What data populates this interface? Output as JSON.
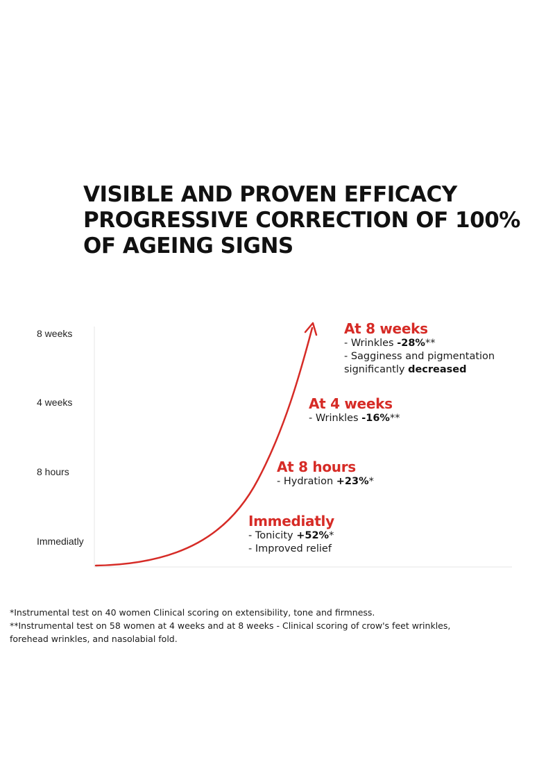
{
  "title_lines": [
    "VISIBLE AND PROVEN EFFICACY",
    "PROGRESSIVE CORRECTION OF 100%",
    "OF AGEING SIGNS"
  ],
  "chart_data": {
    "type": "line",
    "title": "",
    "xlabel": "",
    "ylabel": "",
    "y_tick_labels": [
      "Immediatly",
      "8 hours",
      "4 weeks",
      "8 weeks"
    ],
    "grid": false,
    "series": [
      {
        "values_shape": "exponential rising curve ending in arrow"
      }
    ],
    "accent_color": "#d62b26"
  },
  "milestones": [
    {
      "heading": "At 8 weeks",
      "lines": [
        [
          {
            "t": "- Wrinkles "
          },
          {
            "t": "-28%",
            "b": true
          },
          {
            "t": "**"
          }
        ],
        [
          {
            "t": "- Sagginess and pigmentation"
          }
        ],
        [
          {
            "t": "significantly "
          },
          {
            "t": "decreased",
            "b": true
          }
        ]
      ]
    },
    {
      "heading": "At 4 weeks",
      "lines": [
        [
          {
            "t": "- Wrinkles "
          },
          {
            "t": "-16%",
            "b": true
          },
          {
            "t": "**"
          }
        ]
      ]
    },
    {
      "heading": "At 8 hours",
      "lines": [
        [
          {
            "t": "- Hydration "
          },
          {
            "t": "+23%",
            "b": true
          },
          {
            "t": "*"
          }
        ]
      ]
    },
    {
      "heading": "Immediatly",
      "lines": [
        [
          {
            "t": "- Tonicity "
          },
          {
            "t": "+52%",
            "b": true
          },
          {
            "t": "*"
          }
        ],
        [
          {
            "t": "- Improved relief"
          }
        ]
      ]
    }
  ],
  "footnotes": [
    "*Instrumental test on 40 women Clinical scoring on extensibility, tone and firmness.",
    "**Instrumental test on 58 women at 4 weeks and at 8 weeks - Clinical scoring of crow's feet wrinkles,",
    "forehead wrinkles, and nasolabial fold."
  ]
}
